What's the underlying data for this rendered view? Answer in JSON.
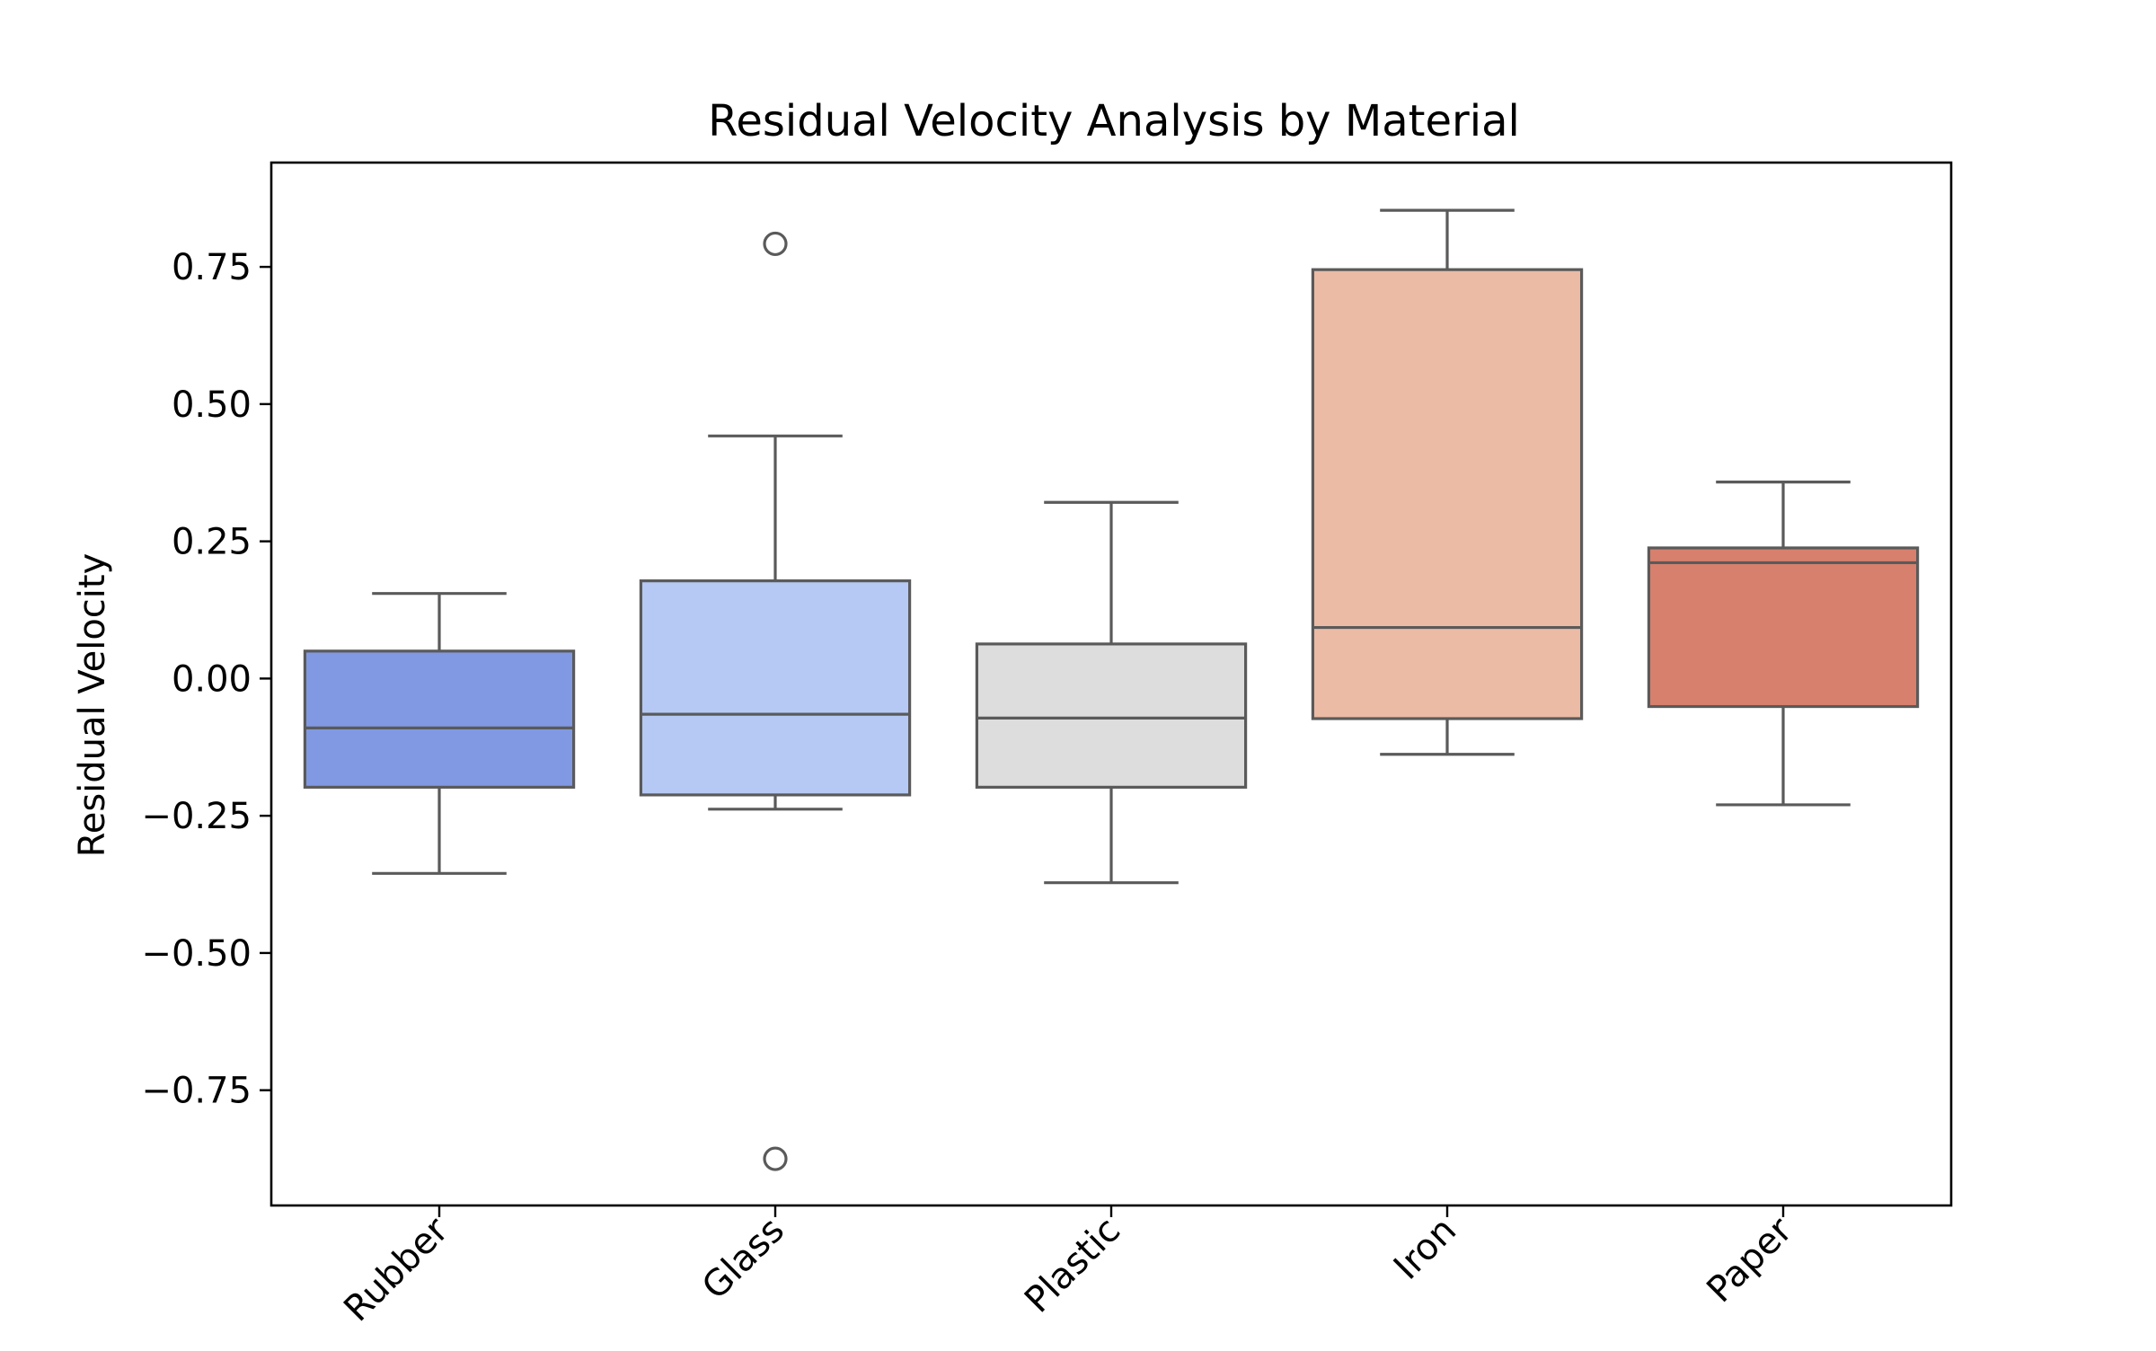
{
  "chart_data": {
    "type": "box",
    "title": "Residual Velocity Analysis by Material",
    "xlabel": "",
    "ylabel": "Residual Velocity",
    "ylim": [
      -0.96,
      0.94
    ],
    "yticks": [
      -0.75,
      -0.5,
      -0.25,
      0.0,
      0.25,
      0.5,
      0.75
    ],
    "ytick_labels": [
      "−0.75",
      "−0.50",
      "−0.25",
      "0.00",
      "0.25",
      "0.50",
      "0.75"
    ],
    "categories": [
      "Rubber",
      "Glass",
      "Plastic",
      "Iron",
      "Paper"
    ],
    "boxes": [
      {
        "category": "Rubber",
        "whisker_low": -0.355,
        "q1": -0.198,
        "median": -0.09,
        "q3": 0.05,
        "whisker_high": 0.155,
        "outliers": [],
        "color": "#8199e3"
      },
      {
        "category": "Glass",
        "whisker_low": -0.238,
        "q1": -0.212,
        "median": -0.065,
        "q3": 0.178,
        "whisker_high": 0.442,
        "outliers": [
          0.792,
          -0.875
        ],
        "color": "#b5c9f4"
      },
      {
        "category": "Plastic",
        "whisker_low": -0.372,
        "q1": -0.198,
        "median": -0.072,
        "q3": 0.063,
        "whisker_high": 0.321,
        "outliers": [],
        "color": "#dddddd"
      },
      {
        "category": "Iron",
        "whisker_low": -0.138,
        "q1": -0.073,
        "median": 0.093,
        "q3": 0.745,
        "whisker_high": 0.853,
        "outliers": [],
        "color": "#ebbba5"
      },
      {
        "category": "Paper",
        "whisker_low": -0.23,
        "q1": -0.051,
        "median": 0.211,
        "q3": 0.238,
        "whisker_high": 0.358,
        "outliers": [],
        "color": "#d7806d"
      }
    ],
    "grid": false,
    "legend": "none"
  }
}
